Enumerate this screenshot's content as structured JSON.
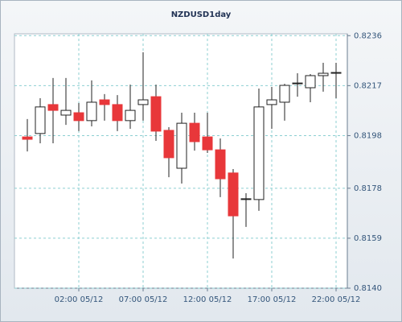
{
  "chart_data": {
    "type": "candlestick",
    "title": "NZDUSD1day",
    "categories": [
      null,
      null,
      null,
      null,
      "02:00 05/12",
      null,
      null,
      null,
      null,
      "07:00 05/12",
      null,
      null,
      null,
      null,
      "12:00 05/12",
      null,
      null,
      null,
      null,
      "17:00 05/12",
      null,
      null,
      null,
      null,
      "22:00 05/12"
    ],
    "open": [
      0.81975,
      0.81988,
      0.82098,
      0.82058,
      0.82067,
      0.82037,
      0.82116,
      0.82098,
      0.82037,
      0.82098,
      0.82128,
      0.82,
      0.81856,
      0.82027,
      0.81975,
      0.81926,
      0.81838,
      0.81737,
      0.81737,
      0.82098,
      0.82107,
      0.82177,
      0.82162,
      0.82208,
      0.82217
    ],
    "high": [
      0.82043,
      0.82122,
      0.82199,
      0.82199,
      0.82104,
      0.8219,
      0.82138,
      0.82134,
      0.82174,
      0.82297,
      0.82174,
      0.82012,
      0.82067,
      0.82067,
      0.82067,
      0.81969,
      0.81853,
      0.81761,
      0.82159,
      0.82165,
      0.82177,
      0.82217,
      0.82214,
      0.82257,
      0.82257
    ],
    "low": [
      0.8192,
      0.81951,
      0.81951,
      0.82021,
      0.81997,
      0.82015,
      0.82037,
      0.81997,
      0.82006,
      0.82037,
      0.8196,
      0.81822,
      0.81798,
      0.81923,
      0.81914,
      0.81746,
      0.81513,
      0.81633,
      0.81694,
      0.82006,
      0.82037,
      0.82128,
      0.82107,
      0.82147,
      0.82122
    ],
    "close": [
      0.81966,
      0.82089,
      0.82076,
      0.82076,
      0.82037,
      0.82107,
      0.82098,
      0.82037,
      0.82076,
      0.82116,
      0.81997,
      0.81896,
      0.82027,
      0.81957,
      0.81926,
      0.81816,
      0.81675,
      0.8174,
      0.82089,
      0.82116,
      0.82171,
      0.8218,
      0.82208,
      0.82217,
      0.8222
    ],
    "up_color": "#ffffff",
    "down_color": "#e8373a",
    "ylim": [
      0.814,
      0.82367
    ],
    "yticks": [
      {
        "value": 0.814,
        "label": "0.8140"
      },
      0.8159,
      0.8178,
      0.8198,
      0.8217,
      0.8236
    ],
    "grid": true
  }
}
